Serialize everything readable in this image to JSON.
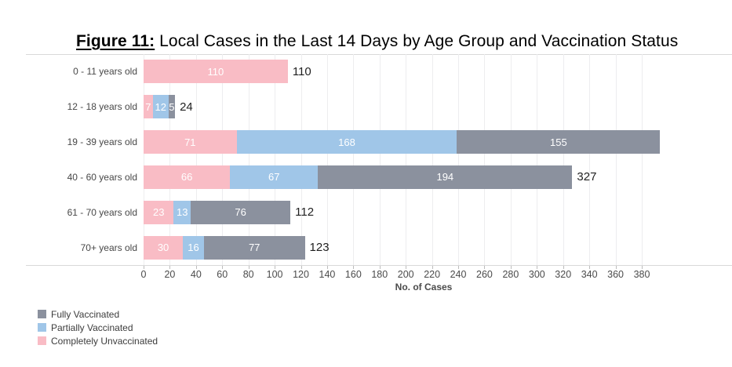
{
  "title": {
    "prefix": "Figure 11:",
    "text": " Local Cases in the Last 14 Days by Age Group and Vaccination Status"
  },
  "colors": {
    "fully": "#8b919e",
    "partial": "#a0c6e8",
    "unvax": "#f9bcc5"
  },
  "chart_data": {
    "type": "bar",
    "stacked": true,
    "orientation": "horizontal",
    "title": "Figure 11: Local Cases in the Last 14 Days by Age Group and Vaccination Status",
    "xlabel": "No. of Cases",
    "xlim": [
      0,
      380
    ],
    "x_ticks": [
      0,
      20,
      40,
      60,
      80,
      100,
      120,
      140,
      160,
      180,
      200,
      220,
      240,
      260,
      280,
      300,
      320,
      340,
      360,
      380
    ],
    "grid": true,
    "legend_position": "bottom-left",
    "rows": [
      {
        "label": "0 - 11 years old",
        "segments": [
          {
            "series": "unvax",
            "value": 110
          }
        ],
        "total": "110"
      },
      {
        "label": "12 - 18 years old",
        "segments": [
          {
            "series": "unvax",
            "value": 7
          },
          {
            "series": "partial",
            "value": 12
          },
          {
            "series": "fully",
            "value": 5
          }
        ],
        "total": "24"
      },
      {
        "label": "19 - 39 years old",
        "segments": [
          {
            "series": "unvax",
            "value": 71
          },
          {
            "series": "partial",
            "value": 168
          },
          {
            "series": "fully",
            "value": 155
          }
        ],
        "total": null
      },
      {
        "label": "40 - 60 years old",
        "segments": [
          {
            "series": "unvax",
            "value": 66
          },
          {
            "series": "partial",
            "value": 67
          },
          {
            "series": "fully",
            "value": 194
          }
        ],
        "total": "327"
      },
      {
        "label": "61 - 70 years old",
        "segments": [
          {
            "series": "unvax",
            "value": 23
          },
          {
            "series": "partial",
            "value": 13
          },
          {
            "series": "fully",
            "value": 76
          }
        ],
        "total": "112"
      },
      {
        "label": "70+ years old",
        "segments": [
          {
            "series": "unvax",
            "value": 30
          },
          {
            "series": "partial",
            "value": 16
          },
          {
            "series": "fully",
            "value": 77
          }
        ],
        "total": "123"
      }
    ]
  },
  "legend": {
    "items": [
      {
        "series": "fully",
        "label": "Fully Vaccinated"
      },
      {
        "series": "partial",
        "label": "Partially Vaccinated"
      },
      {
        "series": "unvax",
        "label": "Completely Unvaccinated"
      }
    ]
  }
}
